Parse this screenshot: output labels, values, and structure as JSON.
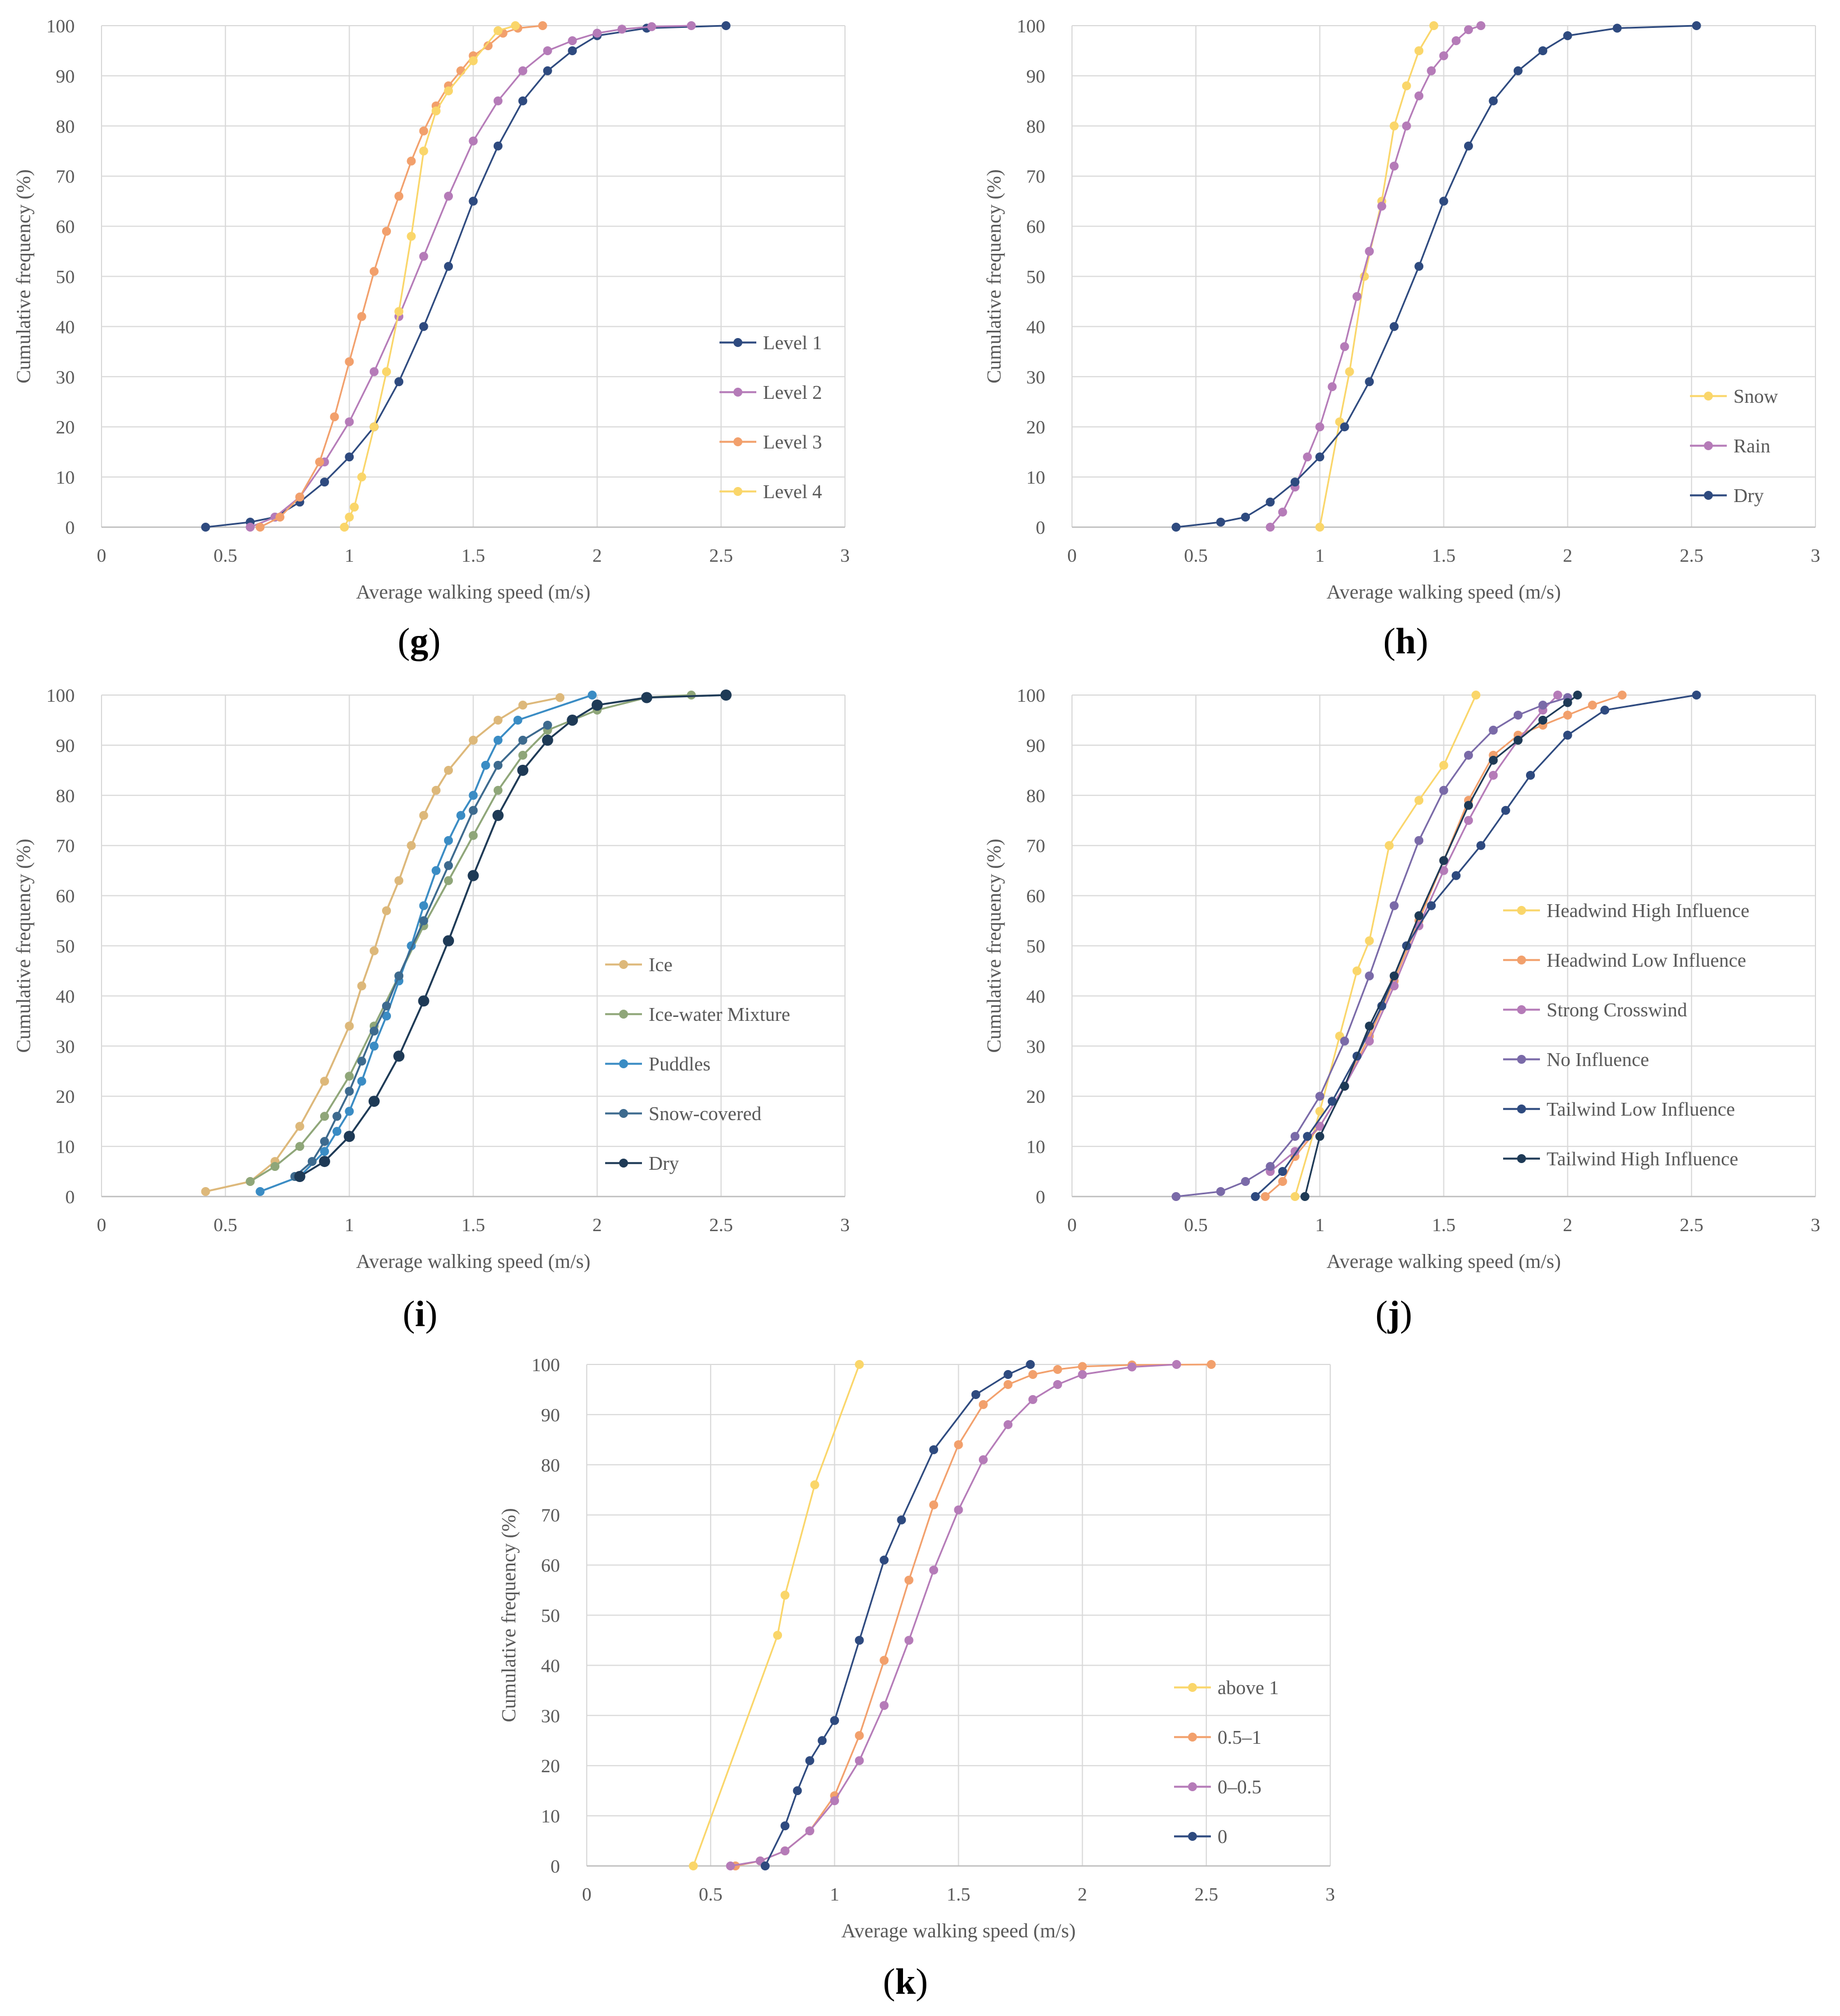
{
  "figure": {
    "axis_xlabel": "Average walking speed (m/s)",
    "axis_ylabel": "Cumulative frequency (%)",
    "xticks": [
      "0",
      "0.5",
      "1",
      "1.5",
      "2",
      "2.5",
      "3"
    ],
    "yticks": [
      "0",
      "10",
      "20",
      "30",
      "40",
      "50",
      "60",
      "70",
      "80",
      "90",
      "100"
    ],
    "colors": {
      "navy": "#2e4a7f",
      "purple": "#b57bb8",
      "orange": "#f2a06c",
      "yellow": "#fad66a",
      "tan": "#ddb87a",
      "sage": "#8fa679",
      "steel_blue": "#3a8cc4",
      "slate": "#3d6a8e",
      "dark_navy": "#1e3a56",
      "violet": "#7a6aa8",
      "grid": "#d9d9d9",
      "axis": "#bfbfbf",
      "text": "#595959"
    }
  },
  "chart_data": [
    {
      "id": "g",
      "label": "g",
      "type": "line",
      "title": "",
      "xlabel": "Average walking speed (m/s)",
      "ylabel": "Cumulative frequency (%)",
      "xlim": [
        0,
        3
      ],
      "ylim": [
        0,
        100
      ],
      "grid": true,
      "legend_position": "right-bottom",
      "series": [
        {
          "name": "Level 1",
          "color": "#2e4a7f",
          "x": [
            0.42,
            0.6,
            0.7,
            0.8,
            0.9,
            1.0,
            1.1,
            1.2,
            1.3,
            1.4,
            1.5,
            1.6,
            1.7,
            1.8,
            1.9,
            2.0,
            2.2,
            2.52
          ],
          "y": [
            0,
            1,
            2,
            5,
            9,
            14,
            20,
            29,
            40,
            52,
            65,
            76,
            85,
            91,
            95,
            98,
            99.5,
            100
          ]
        },
        {
          "name": "Level 2",
          "color": "#b57bb8",
          "x": [
            0.6,
            0.7,
            0.8,
            0.9,
            1.0,
            1.1,
            1.2,
            1.3,
            1.4,
            1.5,
            1.6,
            1.7,
            1.8,
            1.9,
            2.0,
            2.1,
            2.22,
            2.38
          ],
          "y": [
            0,
            2,
            6,
            13,
            21,
            31,
            42,
            54,
            66,
            77,
            85,
            91,
            95,
            97,
            98.5,
            99.3,
            99.8,
            100
          ]
        },
        {
          "name": "Level 3",
          "color": "#f2a06c",
          "x": [
            0.64,
            0.72,
            0.8,
            0.88,
            0.94,
            1.0,
            1.05,
            1.1,
            1.15,
            1.2,
            1.25,
            1.3,
            1.35,
            1.4,
            1.45,
            1.5,
            1.56,
            1.62,
            1.68,
            1.78
          ],
          "y": [
            0,
            2,
            6,
            13,
            22,
            33,
            42,
            51,
            59,
            66,
            73,
            79,
            84,
            88,
            91,
            94,
            96,
            98.5,
            99.5,
            100
          ]
        },
        {
          "name": "Level 4",
          "color": "#fad66a",
          "x": [
            0.98,
            1.0,
            1.02,
            1.05,
            1.1,
            1.15,
            1.2,
            1.25,
            1.3,
            1.35,
            1.4,
            1.5,
            1.6,
            1.67
          ],
          "y": [
            0,
            2,
            4,
            10,
            20,
            31,
            43,
            58,
            75,
            83,
            87,
            93,
            99,
            100
          ]
        }
      ]
    },
    {
      "id": "h",
      "label": "h",
      "type": "line",
      "title": "",
      "xlabel": "Average walking speed (m/s)",
      "ylabel": "Cumulative frequency (%)",
      "xlim": [
        0,
        3
      ],
      "ylim": [
        0,
        100
      ],
      "grid": true,
      "legend_position": "right-bottom",
      "series": [
        {
          "name": "Snow",
          "color": "#fad66a",
          "x": [
            1.0,
            1.08,
            1.12,
            1.18,
            1.25,
            1.3,
            1.35,
            1.4,
            1.46
          ],
          "y": [
            0,
            21,
            31,
            50,
            65,
            80,
            88,
            95,
            100
          ]
        },
        {
          "name": "Rain",
          "color": "#b57bb8",
          "x": [
            0.8,
            0.85,
            0.9,
            0.95,
            1.0,
            1.05,
            1.1,
            1.15,
            1.2,
            1.25,
            1.3,
            1.35,
            1.4,
            1.45,
            1.5,
            1.55,
            1.6,
            1.65
          ],
          "y": [
            0,
            3,
            8,
            14,
            20,
            28,
            36,
            46,
            55,
            64,
            72,
            80,
            86,
            91,
            94,
            97,
            99.2,
            100
          ]
        },
        {
          "name": "Dry",
          "color": "#2e4a7f",
          "x": [
            0.42,
            0.6,
            0.7,
            0.8,
            0.9,
            1.0,
            1.1,
            1.2,
            1.3,
            1.4,
            1.5,
            1.6,
            1.7,
            1.8,
            1.9,
            2.0,
            2.2,
            2.52
          ],
          "y": [
            0,
            1,
            2,
            5,
            9,
            14,
            20,
            29,
            40,
            52,
            65,
            76,
            85,
            91,
            95,
            98,
            99.5,
            100
          ]
        }
      ]
    },
    {
      "id": "i",
      "label": "i",
      "type": "line",
      "title": "",
      "xlabel": "Average walking speed (m/s)",
      "ylabel": "Cumulative frequency (%)",
      "xlim": [
        0,
        3
      ],
      "ylim": [
        0,
        100
      ],
      "grid": true,
      "legend_position": "right-bottom",
      "series": [
        {
          "name": "Ice",
          "color": "#ddb87a",
          "x": [
            0.42,
            0.6,
            0.7,
            0.8,
            0.9,
            1.0,
            1.05,
            1.1,
            1.15,
            1.2,
            1.25,
            1.3,
            1.35,
            1.4,
            1.5,
            1.6,
            1.7,
            1.85
          ],
          "y": [
            1,
            3,
            7,
            14,
            23,
            34,
            42,
            49,
            57,
            63,
            70,
            76,
            81,
            85,
            91,
            95,
            98,
            99.5
          ]
        },
        {
          "name": "Ice-water Mixture",
          "color": "#8fa679",
          "x": [
            0.6,
            0.7,
            0.8,
            0.9,
            1.0,
            1.1,
            1.2,
            1.3,
            1.4,
            1.5,
            1.6,
            1.7,
            1.8,
            2.0,
            2.2,
            2.38
          ],
          "y": [
            3,
            6,
            10,
            16,
            24,
            34,
            44,
            54,
            63,
            72,
            81,
            88,
            93,
            97,
            99.5,
            100
          ]
        },
        {
          "name": "Puddles",
          "color": "#3a8cc4",
          "x": [
            0.64,
            0.8,
            0.9,
            0.95,
            1.0,
            1.05,
            1.1,
            1.15,
            1.2,
            1.25,
            1.3,
            1.35,
            1.4,
            1.45,
            1.5,
            1.55,
            1.6,
            1.68,
            1.98
          ],
          "y": [
            1,
            4,
            9,
            13,
            17,
            23,
            30,
            36,
            43,
            50,
            58,
            65,
            71,
            76,
            80,
            86,
            91,
            95,
            100
          ]
        },
        {
          "name": "Snow-covered",
          "color": "#3d6a8e",
          "x": [
            0.78,
            0.85,
            0.9,
            0.95,
            1.0,
            1.05,
            1.1,
            1.15,
            1.2,
            1.3,
            1.4,
            1.5,
            1.6,
            1.7,
            1.8
          ],
          "y": [
            4,
            7,
            11,
            16,
            21,
            27,
            33,
            38,
            44,
            55,
            66,
            77,
            86,
            91,
            94
          ]
        },
        {
          "name": "Dry",
          "color": "#1e3a56",
          "x": [
            0.8,
            0.9,
            1.0,
            1.1,
            1.2,
            1.3,
            1.4,
            1.5,
            1.6,
            1.7,
            1.8,
            1.9,
            2.0,
            2.2,
            2.52
          ],
          "y": [
            4,
            7,
            12,
            19,
            28,
            39,
            51,
            64,
            76,
            85,
            91,
            95,
            98,
            99.5,
            100
          ]
        }
      ]
    },
    {
      "id": "j",
      "label": "j",
      "type": "line",
      "title": "",
      "xlabel": "Average walking speed (m/s)",
      "ylabel": "Cumulative frequency (%)",
      "xlim": [
        0,
        3
      ],
      "ylim": [
        0,
        100
      ],
      "grid": true,
      "legend_position": "right",
      "series": [
        {
          "name": "Headwind High Influence",
          "color": "#fad66a",
          "x": [
            0.9,
            1.0,
            1.08,
            1.15,
            1.2,
            1.28,
            1.4,
            1.5,
            1.63
          ],
          "y": [
            0,
            17,
            32,
            45,
            51,
            70,
            79,
            86,
            100
          ]
        },
        {
          "name": "Headwind Low Influence",
          "color": "#f2a06c",
          "x": [
            0.78,
            0.85,
            0.9,
            1.0,
            1.1,
            1.2,
            1.3,
            1.4,
            1.5,
            1.6,
            1.7,
            1.8,
            1.9,
            2.0,
            2.1,
            2.22
          ],
          "y": [
            0,
            3,
            8,
            14,
            22,
            32,
            43,
            55,
            67,
            79,
            88,
            92,
            94,
            96,
            98,
            100
          ]
        },
        {
          "name": "Strong Crosswind",
          "color": "#b57bb8",
          "x": [
            0.8,
            0.9,
            1.0,
            1.1,
            1.2,
            1.3,
            1.4,
            1.5,
            1.6,
            1.7,
            1.8,
            1.9,
            1.96
          ],
          "y": [
            5,
            9,
            14,
            22,
            31,
            42,
            54,
            65,
            75,
            84,
            91,
            97,
            100
          ]
        },
        {
          "name": "No Influence",
          "color": "#7a6aa8",
          "x": [
            0.42,
            0.6,
            0.7,
            0.8,
            0.9,
            1.0,
            1.1,
            1.2,
            1.3,
            1.4,
            1.5,
            1.6,
            1.7,
            1.8,
            1.9,
            2.0
          ],
          "y": [
            0,
            1,
            3,
            6,
            12,
            20,
            31,
            44,
            58,
            71,
            81,
            88,
            93,
            96,
            98,
            99.5
          ]
        },
        {
          "name": "Tailwind Low Influence",
          "color": "#2e4a7f",
          "x": [
            0.74,
            0.85,
            0.95,
            1.05,
            1.15,
            1.25,
            1.35,
            1.45,
            1.55,
            1.65,
            1.75,
            1.85,
            2.0,
            2.15,
            2.52
          ],
          "y": [
            0,
            5,
            12,
            19,
            28,
            38,
            50,
            58,
            64,
            70,
            77,
            84,
            92,
            97,
            100
          ]
        },
        {
          "name": "Tailwind High Influence",
          "color": "#1e3a56",
          "x": [
            0.94,
            1.0,
            1.1,
            1.2,
            1.3,
            1.4,
            1.5,
            1.6,
            1.7,
            1.8,
            1.9,
            2.0,
            2.04
          ],
          "y": [
            0,
            12,
            22,
            34,
            44,
            56,
            67,
            78,
            87,
            91,
            95,
            98.5,
            100
          ]
        }
      ]
    },
    {
      "id": "k",
      "label": "k",
      "type": "line",
      "title": "",
      "xlabel": "Average walking speed (m/s)",
      "ylabel": "Cumulative frequency (%)",
      "xlim": [
        0,
        3
      ],
      "ylim": [
        0,
        100
      ],
      "grid": true,
      "legend_position": "right-bottom",
      "series": [
        {
          "name": "above 1",
          "color": "#fad66a",
          "x": [
            0.43,
            0.77,
            0.8,
            0.92,
            1.1
          ],
          "y": [
            0,
            46,
            54,
            76,
            100
          ]
        },
        {
          "name": "0.5–1",
          "color": "#f2a06c",
          "x": [
            0.6,
            0.7,
            0.8,
            0.9,
            1.0,
            1.1,
            1.2,
            1.3,
            1.4,
            1.5,
            1.6,
            1.7,
            1.8,
            1.9,
            2.0,
            2.2,
            2.52
          ],
          "y": [
            0,
            1,
            3,
            7,
            14,
            26,
            41,
            57,
            72,
            84,
            92,
            96,
            98,
            99,
            99.6,
            99.9,
            100
          ]
        },
        {
          "name": "0–0.5",
          "color": "#b57bb8",
          "x": [
            0.58,
            0.7,
            0.8,
            0.9,
            1.0,
            1.1,
            1.2,
            1.3,
            1.4,
            1.5,
            1.6,
            1.7,
            1.8,
            1.9,
            2.0,
            2.2,
            2.38
          ],
          "y": [
            0,
            1,
            3,
            7,
            13,
            21,
            32,
            45,
            59,
            71,
            81,
            88,
            93,
            96,
            98,
            99.5,
            100
          ]
        },
        {
          "name": "0",
          "color": "#2e4a7f",
          "x": [
            0.72,
            0.8,
            0.85,
            0.9,
            0.95,
            1.0,
            1.1,
            1.2,
            1.27,
            1.4,
            1.57,
            1.7,
            1.79
          ],
          "y": [
            0,
            8,
            15,
            21,
            25,
            29,
            45,
            61,
            69,
            83,
            94,
            98,
            100
          ]
        }
      ]
    }
  ]
}
